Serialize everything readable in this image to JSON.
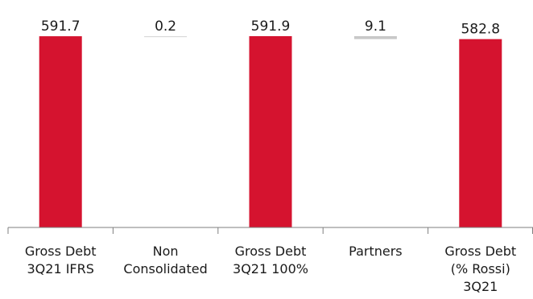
{
  "chart_data": {
    "type": "bar",
    "subtype": "waterfall",
    "categories": [
      [
        "Gross Debt",
        "3Q21 IFRS"
      ],
      [
        "Non",
        "Consolidated"
      ],
      [
        "Gross Debt",
        "3Q21 100%"
      ],
      [
        "Partners"
      ],
      [
        "Gross Debt",
        "(% Rossi)",
        "3Q21"
      ]
    ],
    "values": [
      591.7,
      0.2,
      591.9,
      9.1,
      582.8
    ],
    "value_labels": [
      "591.7",
      "0.2",
      "591.9",
      "9.1",
      "582.8"
    ],
    "bar_kind": [
      "total",
      "increase",
      "total",
      "decrease",
      "total"
    ],
    "colors": {
      "total": "#d5132f",
      "increase": "#d9d9d9",
      "decrease": "#c8c8c8",
      "axis": "#7f7f7f",
      "text": "#1a1a1a"
    },
    "ylim": [
      0,
      591.9
    ],
    "grid": false,
    "legend": "none"
  }
}
